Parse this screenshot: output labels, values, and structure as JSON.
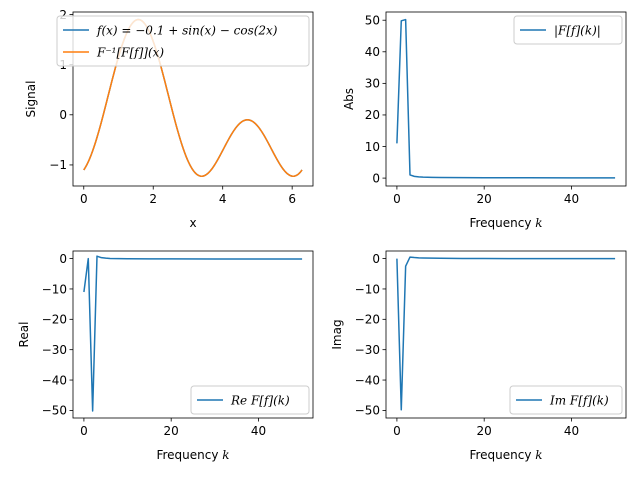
{
  "colors": {
    "series1": "#1f77b4",
    "series2": "#ff7f0e"
  },
  "chart_data": [
    {
      "id": "signal",
      "type": "line",
      "title": "",
      "xlabel": "x",
      "ylabel": "Signal",
      "xlim": [
        -0.31,
        6.6
      ],
      "ylim": [
        -1.42,
        2.05
      ],
      "xticks": [
        0,
        2,
        4,
        6
      ],
      "yticks": [
        -1,
        0,
        1,
        2
      ],
      "legend_position": "top-right",
      "grid": false,
      "series": [
        {
          "name": "f(x) = −0.1 + sin(x) − cos(2x)",
          "color": "#1f77b4",
          "function": "-0.1 + sin(x) - cos(2x)",
          "x_range": [
            0,
            6.2832
          ]
        },
        {
          "name": "F⁻¹[F[f]](x)",
          "color": "#ff7f0e",
          "function": "-0.1 + sin(x) - cos(2x)",
          "x_range": [
            0,
            6.2832
          ]
        }
      ]
    },
    {
      "id": "abs",
      "type": "line",
      "title": "",
      "xlabel": "Frequency k",
      "ylabel": "Abs",
      "xlim": [
        -2.5,
        52.5
      ],
      "ylim": [
        -2.5,
        52.6
      ],
      "xticks": [
        0,
        20,
        40
      ],
      "yticks": [
        0,
        10,
        20,
        30,
        40,
        50
      ],
      "legend_position": "top-right",
      "grid": false,
      "series": [
        {
          "name": "|F[f](k)|",
          "color": "#1f77b4",
          "x": [
            0,
            1,
            2,
            3,
            4,
            5,
            6,
            8,
            10,
            15,
            20,
            30,
            40,
            50
          ],
          "y": [
            11,
            49.8,
            50.2,
            1.0,
            0.55,
            0.4,
            0.32,
            0.25,
            0.2,
            0.15,
            0.12,
            0.1,
            0.08,
            0.07
          ]
        }
      ]
    },
    {
      "id": "real",
      "type": "line",
      "title": "",
      "xlabel": "Frequency k",
      "ylabel": "Real",
      "xlim": [
        -2.5,
        52.5
      ],
      "ylim": [
        -52.5,
        2.5
      ],
      "xticks": [
        0,
        20,
        40
      ],
      "yticks": [
        -50,
        -40,
        -30,
        -20,
        -10,
        0
      ],
      "legend_position": "bottom-right",
      "grid": false,
      "series": [
        {
          "name": "Re F[f](k)",
          "color": "#1f77b4",
          "x": [
            0,
            1,
            2,
            3,
            4,
            5,
            6,
            8,
            10,
            15,
            20,
            30,
            40,
            50
          ],
          "y": [
            -11,
            0,
            -50.2,
            0.8,
            0.3,
            0.15,
            0.05,
            0,
            -0.05,
            -0.1,
            -0.1,
            -0.12,
            -0.12,
            -0.12
          ]
        }
      ]
    },
    {
      "id": "imag",
      "type": "line",
      "title": "",
      "xlabel": "Frequency k",
      "ylabel": "Imag",
      "xlim": [
        -2.5,
        52.5
      ],
      "ylim": [
        -52.5,
        2.5
      ],
      "xticks": [
        0,
        20,
        40
      ],
      "yticks": [
        -50,
        -40,
        -30,
        -20,
        -10,
        0
      ],
      "legend_position": "bottom-right",
      "grid": false,
      "series": [
        {
          "name": "Im F[f](k)",
          "color": "#1f77b4",
          "x": [
            0,
            1,
            2,
            3,
            4,
            5,
            6,
            8,
            10,
            15,
            20,
            30,
            40,
            50
          ],
          "y": [
            0,
            -49.8,
            -2.5,
            0.5,
            0.35,
            0.25,
            0.2,
            0.15,
            0.1,
            0.05,
            0.02,
            0,
            0,
            0
          ]
        }
      ]
    }
  ]
}
